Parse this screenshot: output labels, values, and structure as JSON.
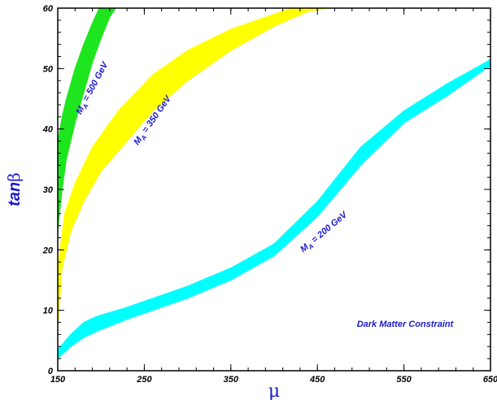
{
  "chart_data": {
    "type": "area",
    "xlabel": "μ",
    "ylabel_main": "tan",
    "ylabel_symbol": "β",
    "xlim": [
      150,
      650
    ],
    "ylim": [
      0,
      60
    ],
    "xticks": [
      150,
      250,
      350,
      450,
      550,
      650
    ],
    "yticks": [
      0,
      10,
      20,
      30,
      40,
      50,
      60
    ],
    "grid": false,
    "annotation": "Dark Matter Constraint",
    "series": [
      {
        "name": "M_A = 500 GeV",
        "label_main": "M",
        "label_sub": "A",
        "label_rest": " = 500 GeV",
        "color": "#1ee61e",
        "upper": [
          [
            150,
            38
          ],
          [
            155,
            42
          ],
          [
            160,
            45
          ],
          [
            170,
            50
          ],
          [
            180,
            54
          ],
          [
            190,
            57.5
          ],
          [
            198,
            60
          ]
        ],
        "lower": [
          [
            150,
            23
          ],
          [
            155,
            30
          ],
          [
            160,
            35
          ],
          [
            170,
            41
          ],
          [
            180,
            46
          ],
          [
            190,
            51
          ],
          [
            200,
            55
          ],
          [
            210,
            58.5
          ],
          [
            217,
            60
          ]
        ]
      },
      {
        "name": "M_A = 350 GeV",
        "label_main": "M",
        "label_sub": "A",
        "label_rest": " = 350 GeV",
        "color": "#ffff00",
        "upper": [
          [
            150,
            17
          ],
          [
            158,
            26
          ],
          [
            170,
            31
          ],
          [
            190,
            37
          ],
          [
            220,
            43
          ],
          [
            260,
            49
          ],
          [
            300,
            53
          ],
          [
            350,
            56.5
          ],
          [
            400,
            59
          ],
          [
            420,
            60
          ]
        ],
        "lower": [
          [
            150,
            7
          ],
          [
            155,
            17
          ],
          [
            165,
            23
          ],
          [
            180,
            28
          ],
          [
            200,
            33
          ],
          [
            230,
            38
          ],
          [
            260,
            43
          ],
          [
            300,
            48
          ],
          [
            350,
            53
          ],
          [
            400,
            57
          ],
          [
            440,
            59.5
          ],
          [
            465,
            60
          ]
        ]
      },
      {
        "name": "M_A = 200 GeV",
        "label_main": "M",
        "label_sub": "A",
        "label_rest": " = 200 GeV",
        "color": "#00ffff",
        "upper": [
          [
            150,
            3.5
          ],
          [
            165,
            6
          ],
          [
            180,
            8
          ],
          [
            195,
            9
          ],
          [
            230,
            10.5
          ],
          [
            260,
            12
          ],
          [
            300,
            14
          ],
          [
            350,
            17
          ],
          [
            400,
            21
          ],
          [
            450,
            28
          ],
          [
            500,
            37
          ],
          [
            550,
            43
          ],
          [
            600,
            47.5
          ],
          [
            650,
            51.5
          ]
        ],
        "lower": [
          [
            150,
            2
          ],
          [
            165,
            4
          ],
          [
            180,
            5.5
          ],
          [
            195,
            6.5
          ],
          [
            230,
            8.5
          ],
          [
            260,
            10
          ],
          [
            300,
            12
          ],
          [
            350,
            15
          ],
          [
            400,
            19
          ],
          [
            450,
            25.5
          ],
          [
            500,
            34
          ],
          [
            550,
            41
          ],
          [
            600,
            45.5
          ],
          [
            650,
            50.5
          ]
        ]
      }
    ]
  }
}
